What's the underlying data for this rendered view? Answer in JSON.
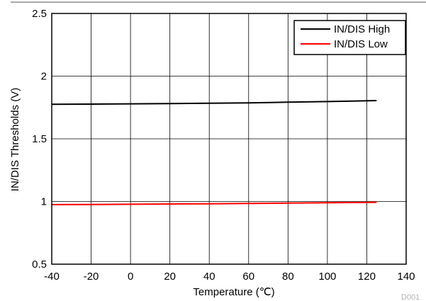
{
  "chart_data": {
    "type": "line",
    "xlabel": "Temperature (℃)",
    "ylabel": "IN/DIS Thresholds (V)",
    "xlim": [
      -40,
      140
    ],
    "ylim": [
      0.5,
      2.5
    ],
    "xticks": [
      -40,
      -20,
      0,
      20,
      40,
      60,
      80,
      100,
      120,
      140
    ],
    "yticks": [
      0.5,
      1,
      1.5,
      2,
      2.5
    ],
    "yticklabels": [
      "0.5",
      "1",
      "1.5",
      "2",
      "2.5"
    ],
    "grid": true,
    "legend_position": "top-right",
    "series": [
      {
        "name": "IN/DIS High",
        "color": "#000000",
        "x": [
          -40,
          -20,
          0,
          20,
          40,
          60,
          80,
          100,
          125
        ],
        "y": [
          1.775,
          1.777,
          1.779,
          1.781,
          1.784,
          1.787,
          1.792,
          1.797,
          1.805
        ]
      },
      {
        "name": "IN/DIS Low",
        "color": "#ff0000",
        "x": [
          -40,
          -20,
          0,
          20,
          40,
          60,
          80,
          100,
          125
        ],
        "y": [
          0.975,
          0.976,
          0.978,
          0.98,
          0.982,
          0.984,
          0.987,
          0.99,
          0.994
        ]
      }
    ],
    "figure_code": "D001"
  }
}
